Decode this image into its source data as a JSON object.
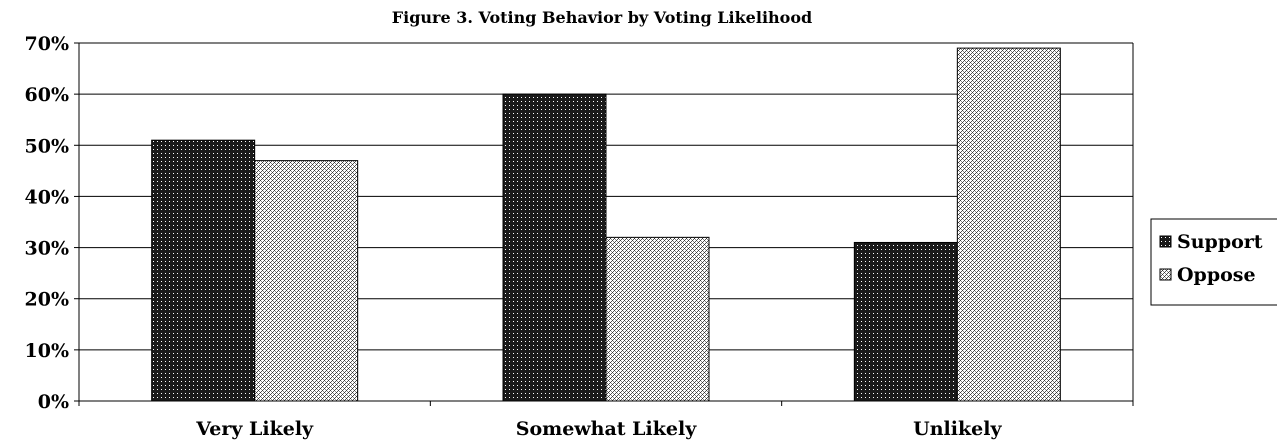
{
  "chart_data": {
    "type": "bar",
    "title": "Figure 3. Voting Behavior by Voting Likelihood",
    "categories": [
      "Very Likely",
      "Somewhat Likely",
      "Unlikely"
    ],
    "series": [
      {
        "name": "Support",
        "values": [
          51,
          60,
          31
        ],
        "color": "#2a2a2a",
        "pattern": "dots"
      },
      {
        "name": "Oppose",
        "values": [
          47,
          32,
          69
        ],
        "color": "#d9d9d9",
        "pattern": "crosshatch"
      }
    ],
    "yticks": [
      "0%",
      "10%",
      "20%",
      "30%",
      "40%",
      "50%",
      "60%",
      "70%"
    ],
    "ylim": [
      0,
      70
    ],
    "grid": true,
    "legend_position": "right"
  }
}
